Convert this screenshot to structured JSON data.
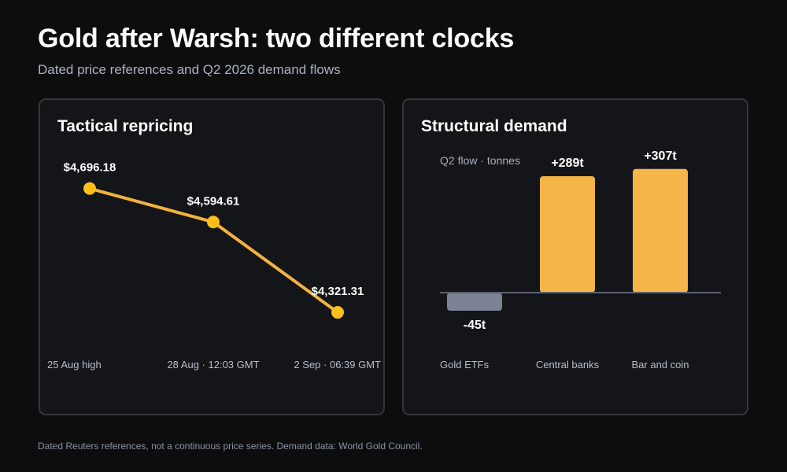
{
  "header": {
    "title": "Gold after Warsh: two different clocks",
    "subtitle": "Dated price references and Q2 2026 demand flows"
  },
  "footnote": "Dated Reuters references, not a continuous price series. Demand data: World Gold Council.",
  "colors": {
    "accent": "#f5b548",
    "line": "#f3b23f",
    "point": "#ffbf1a",
    "negative_bar": "#7b8293",
    "baseline": "#5b6170"
  },
  "chart_data": [
    {
      "type": "line",
      "title": "Tactical repricing",
      "categories": [
        "25 Aug high",
        "28 Aug · 12:03 GMT",
        "2 Sep · 06:39 GMT"
      ],
      "values": [
        4696.18,
        4594.61,
        4321.31
      ],
      "labels": [
        "$4,696.18",
        "$4,594.61",
        "$4,321.31"
      ],
      "ylim": [
        4250,
        4750
      ],
      "grid": false,
      "legend": "none"
    },
    {
      "type": "bar",
      "title": "Structural demand",
      "annotation": "Q2 flow · tonnes",
      "categories": [
        "Gold ETFs",
        "Central banks",
        "Bar and coin"
      ],
      "values": [
        -45,
        289,
        307
      ],
      "labels": [
        "-45t",
        "+289t",
        "+307t"
      ],
      "ylim": [
        -80,
        340
      ],
      "grid": false,
      "legend": "none"
    }
  ]
}
